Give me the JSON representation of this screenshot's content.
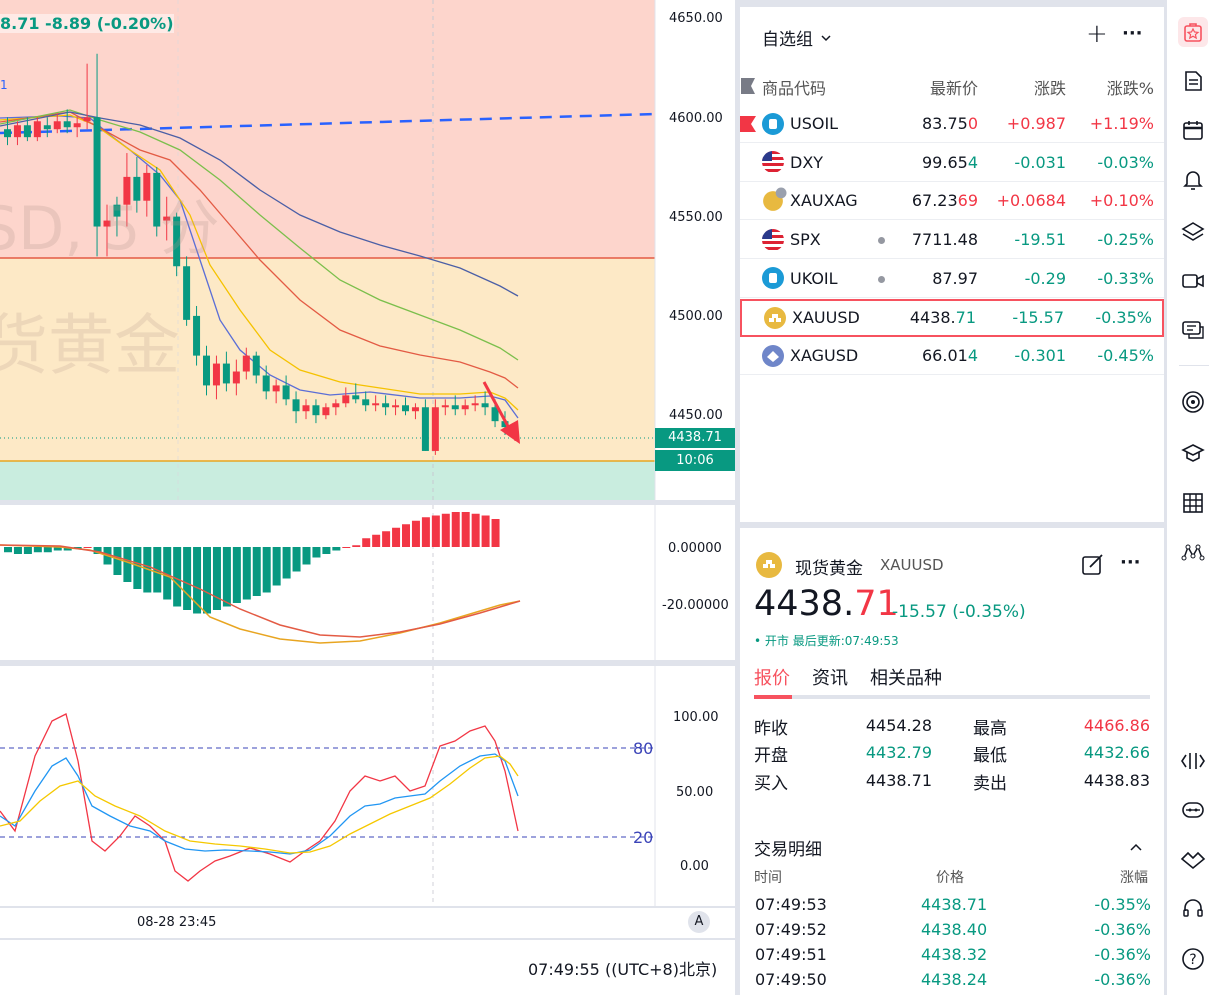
{
  "chart": {
    "header_price_change": "8.71  -8.89 (-0.20%)",
    "header_tag": "1",
    "watermark_line1": "SD, 5 分",
    "watermark_line2": "货黄金",
    "price_axis": [
      "4650.00",
      "4600.00",
      "4550.00",
      "4500.00",
      "4450.00"
    ],
    "last_price_label": "4438.71",
    "countdown_label": "10:06",
    "macd_axis": [
      "0.00000",
      "-20.00000"
    ],
    "stoch_axis": [
      "100.00",
      "50.00",
      "0.00"
    ],
    "stoch_levels": [
      "80",
      "20"
    ],
    "time_axis_label": "08-28 23:45",
    "auto_button": "A",
    "clock": "07:49:55 ((UTC+8)北京)"
  },
  "chart_data": {
    "type": "candlestick",
    "ylim": [
      4420,
      4650
    ],
    "candles_note": "approximate OHLC read from chart",
    "candles": [
      {
        "o": 4594,
        "h": 4600,
        "c": 4590,
        "l": 4586,
        "d": "down"
      },
      {
        "o": 4590,
        "h": 4598,
        "c": 4596,
        "l": 4586,
        "d": "up"
      },
      {
        "o": 4596,
        "h": 4600,
        "c": 4590,
        "l": 4588,
        "d": "down"
      },
      {
        "o": 4590,
        "h": 4600,
        "c": 4598,
        "l": 4588,
        "d": "up"
      },
      {
        "o": 4596,
        "h": 4600,
        "c": 4594,
        "l": 4590,
        "d": "down"
      },
      {
        "o": 4594,
        "h": 4602,
        "c": 4598,
        "l": 4592,
        "d": "up"
      },
      {
        "o": 4598,
        "h": 4604,
        "c": 4595,
        "l": 4592,
        "d": "down"
      },
      {
        "o": 4595,
        "h": 4600,
        "c": 4597,
        "l": 4590,
        "d": "up"
      },
      {
        "o": 4598,
        "h": 4627,
        "c": 4600,
        "l": 4594,
        "d": "up"
      },
      {
        "o": 4600,
        "h": 4632,
        "c": 4545,
        "l": 4530,
        "d": "down"
      },
      {
        "o": 4545,
        "h": 4556,
        "c": 4548,
        "l": 4530,
        "d": "up"
      },
      {
        "o": 4550,
        "h": 4560,
        "c": 4556,
        "l": 4540,
        "d": "down"
      },
      {
        "o": 4556,
        "h": 4582,
        "c": 4570,
        "l": 4545,
        "d": "up"
      },
      {
        "o": 4570,
        "h": 4580,
        "c": 4558,
        "l": 4552,
        "d": "down"
      },
      {
        "o": 4558,
        "h": 4576,
        "c": 4572,
        "l": 4550,
        "d": "up"
      },
      {
        "o": 4572,
        "h": 4575,
        "c": 4545,
        "l": 4540,
        "d": "down"
      },
      {
        "o": 4548,
        "h": 4560,
        "c": 4550,
        "l": 4538,
        "d": "up"
      },
      {
        "o": 4550,
        "h": 4552,
        "c": 4525,
        "l": 4520,
        "d": "down"
      },
      {
        "o": 4525,
        "h": 4530,
        "c": 4498,
        "l": 4495,
        "d": "down"
      },
      {
        "o": 4500,
        "h": 4505,
        "c": 4480,
        "l": 4475,
        "d": "down"
      },
      {
        "o": 4480,
        "h": 4485,
        "c": 4465,
        "l": 4460,
        "d": "down"
      },
      {
        "o": 4465,
        "h": 4480,
        "c": 4476,
        "l": 4458,
        "d": "up"
      },
      {
        "o": 4476,
        "h": 4482,
        "c": 4466,
        "l": 4462,
        "d": "down"
      },
      {
        "o": 4466,
        "h": 4478,
        "c": 4472,
        "l": 4460,
        "d": "up"
      },
      {
        "o": 4472,
        "h": 4484,
        "c": 4480,
        "l": 4468,
        "d": "up"
      },
      {
        "o": 4480,
        "h": 4482,
        "c": 4470,
        "l": 4466,
        "d": "down"
      },
      {
        "o": 4470,
        "h": 4475,
        "c": 4462,
        "l": 4458,
        "d": "down"
      },
      {
        "o": 4462,
        "h": 4468,
        "c": 4465,
        "l": 4456,
        "d": "up"
      },
      {
        "o": 4465,
        "h": 4470,
        "c": 4458,
        "l": 4455,
        "d": "down"
      },
      {
        "o": 4458,
        "h": 4462,
        "c": 4452,
        "l": 4446,
        "d": "down"
      },
      {
        "o": 4452,
        "h": 4458,
        "c": 4455,
        "l": 4448,
        "d": "up"
      },
      {
        "o": 4455,
        "h": 4458,
        "c": 4450,
        "l": 4446,
        "d": "down"
      },
      {
        "o": 4450,
        "h": 4456,
        "c": 4454,
        "l": 4448,
        "d": "up"
      },
      {
        "o": 4454,
        "h": 4458,
        "c": 4456,
        "l": 4450,
        "d": "up"
      },
      {
        "o": 4456,
        "h": 4464,
        "c": 4460,
        "l": 4454,
        "d": "up"
      },
      {
        "o": 4460,
        "h": 4466,
        "c": 4458,
        "l": 4456,
        "d": "down"
      },
      {
        "o": 4458,
        "h": 4462,
        "c": 4455,
        "l": 4452,
        "d": "down"
      },
      {
        "o": 4455,
        "h": 4460,
        "c": 4456,
        "l": 4452,
        "d": "up"
      },
      {
        "o": 4456,
        "h": 4460,
        "c": 4454,
        "l": 4450,
        "d": "down"
      },
      {
        "o": 4454,
        "h": 4458,
        "c": 4455,
        "l": 4450,
        "d": "up"
      },
      {
        "o": 4455,
        "h": 4459,
        "c": 4452,
        "l": 4450,
        "d": "down"
      },
      {
        "o": 4452,
        "h": 4456,
        "c": 4454,
        "l": 4448,
        "d": "up"
      },
      {
        "o": 4454,
        "h": 4458,
        "c": 4432,
        "l": 4432,
        "d": "down"
      },
      {
        "o": 4432,
        "h": 4458,
        "c": 4454,
        "l": 4430,
        "d": "up"
      },
      {
        "o": 4454,
        "h": 4458,
        "c": 4455,
        "l": 4450,
        "d": "up"
      },
      {
        "o": 4455,
        "h": 4460,
        "c": 4453,
        "l": 4450,
        "d": "down"
      },
      {
        "o": 4453,
        "h": 4458,
        "c": 4455,
        "l": 4450,
        "d": "up"
      },
      {
        "o": 4455,
        "h": 4460,
        "c": 4456,
        "l": 4452,
        "d": "up"
      },
      {
        "o": 4456,
        "h": 4462,
        "c": 4454,
        "l": 4450,
        "d": "down"
      },
      {
        "o": 4454,
        "h": 4458,
        "c": 4447,
        "l": 4444,
        "d": "down"
      },
      {
        "o": 4447,
        "h": 4452,
        "c": 4444,
        "l": 4440,
        "d": "down"
      },
      {
        "o": 4440,
        "h": 4446,
        "c": 4444,
        "l": 4437,
        "d": "up"
      }
    ]
  },
  "watchlist": {
    "title": "自选组",
    "add_icon": "+",
    "more_icon": "···",
    "columns": [
      "商品代码",
      "最新价",
      "涨跌",
      "涨跌%"
    ],
    "rows": [
      {
        "symbol": "USOIL",
        "last_main": "83.75",
        "last_tail": "0",
        "change": "+0.987",
        "pct": "+1.19%",
        "dir": "up",
        "flag": true,
        "icon": "oil",
        "dot": false
      },
      {
        "symbol": "DXY",
        "last_main": "99.65",
        "last_tail": "4",
        "change": "-0.031",
        "pct": "-0.03%",
        "dir": "down",
        "flag": false,
        "icon": "us-flag",
        "dot": false
      },
      {
        "symbol": "XAUXAG",
        "last_main": "67.23",
        "last_tail": "69",
        "change": "+0.0684",
        "pct": "+0.10%",
        "dir": "up",
        "flag": false,
        "icon": "gold-silver",
        "dot": false
      },
      {
        "symbol": "SPX",
        "last_main": "7711.48",
        "last_tail": "",
        "change": "-19.51",
        "pct": "-0.25%",
        "dir": "down",
        "flag": false,
        "icon": "us-flag",
        "dot": true
      },
      {
        "symbol": "UKOIL",
        "last_main": "87.97",
        "last_tail": "",
        "change": "-0.29",
        "pct": "-0.33%",
        "dir": "down",
        "flag": false,
        "icon": "oil",
        "dot": true
      },
      {
        "symbol": "XAUUSD",
        "last_main": "4438.",
        "last_tail": "71",
        "change": "-15.57",
        "pct": "-0.35%",
        "dir": "down",
        "flag": false,
        "icon": "gold",
        "dot": false,
        "selected": true
      },
      {
        "symbol": "XAGUSD",
        "last_main": "66.01",
        "last_tail": "4",
        "change": "-0.301",
        "pct": "-0.45%",
        "dir": "down",
        "flag": false,
        "icon": "silver",
        "dot": false
      }
    ]
  },
  "details": {
    "name": "现货黄金",
    "symbol": "XAUUSD",
    "price_main": "4438.",
    "price_tail": "71",
    "change": "-15.57 (-0.35%)",
    "status": "• 开市  最后更新:07:49:53",
    "tabs": [
      "报价",
      "资讯",
      "相关品种"
    ],
    "quote": [
      {
        "label": "昨收",
        "value": "4454.28",
        "label2": "最高",
        "value2": "4466.86"
      },
      {
        "label": "开盘",
        "value": "4432.79",
        "label2": "最低",
        "value2": "4432.66"
      },
      {
        "label": "买入",
        "value": "4438.71",
        "label2": "卖出",
        "value2": "4438.83"
      }
    ],
    "trades_title": "交易明细",
    "trades_cols": [
      "时间",
      "价格",
      "涨幅"
    ],
    "trades": [
      {
        "time": "07:49:53",
        "price": "4438.71",
        "pct": "-0.35%"
      },
      {
        "time": "07:49:52",
        "price": "4438.40",
        "pct": "-0.36%"
      },
      {
        "time": "07:49:51",
        "price": "4438.32",
        "pct": "-0.36%"
      },
      {
        "time": "07:49:50",
        "price": "4438.24",
        "pct": "-0.36%"
      }
    ]
  },
  "colors": {
    "up": "#f23645",
    "down": "#089981",
    "accent": "#f7525f",
    "gold": "#e8b940"
  }
}
